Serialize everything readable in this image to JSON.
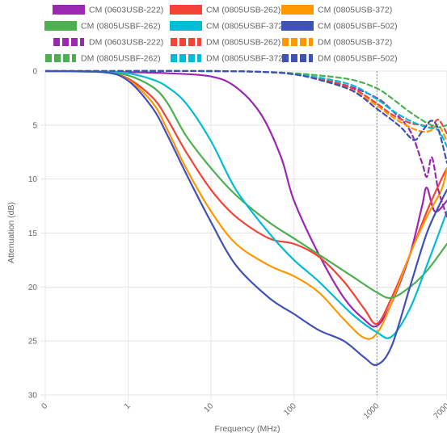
{
  "chart_data": {
    "type": "line",
    "xlabel": "Frequency (MHz)",
    "ylabel": "Attenuation (dB)",
    "x_scale": "log",
    "xlim": [
      0.1,
      7000
    ],
    "ylim": [
      0,
      30
    ],
    "y_reversed": true,
    "x_ticks": [
      "0",
      "1",
      "10",
      "100",
      "1000",
      "7000"
    ],
    "y_ticks": [
      "0",
      "5",
      "10",
      "15",
      "20",
      "25",
      "30"
    ],
    "grid": true,
    "legend_position": "top",
    "marker_line": {
      "x": 1000,
      "style": "dotted",
      "color": "#888888"
    },
    "series": [
      {
        "name": "CM (0603USB-222)",
        "color": "#9c27b0",
        "dash": false,
        "points": [
          [
            0.1,
            0
          ],
          [
            1,
            0.1
          ],
          [
            3,
            0.2
          ],
          [
            10,
            0.5
          ],
          [
            20,
            1.5
          ],
          [
            40,
            4
          ],
          [
            70,
            8
          ],
          [
            100,
            12
          ],
          [
            200,
            17
          ],
          [
            400,
            21
          ],
          [
            700,
            23
          ],
          [
            1000,
            23.6
          ],
          [
            1500,
            21.5
          ],
          [
            2500,
            17
          ],
          [
            3500,
            12.5
          ],
          [
            4000,
            10.8
          ],
          [
            5000,
            13
          ],
          [
            7000,
            12
          ]
        ]
      },
      {
        "name": "CM (0805USB-262)",
        "color": "#f44336",
        "dash": false,
        "points": [
          [
            0.1,
            0
          ],
          [
            0.5,
            0.1
          ],
          [
            1,
            0.7
          ],
          [
            2,
            2.5
          ],
          [
            3,
            4.5
          ],
          [
            5,
            7.5
          ],
          [
            10,
            11
          ],
          [
            20,
            13.5
          ],
          [
            50,
            15.5
          ],
          [
            100,
            16
          ],
          [
            200,
            17.2
          ],
          [
            400,
            19.5
          ],
          [
            700,
            22
          ],
          [
            1000,
            23.4
          ],
          [
            1500,
            21
          ],
          [
            2500,
            17
          ],
          [
            4000,
            13
          ],
          [
            6000,
            10
          ],
          [
            7000,
            9
          ]
        ]
      },
      {
        "name": "CM (0805USB-372)",
        "color": "#ff9800",
        "dash": false,
        "points": [
          [
            0.1,
            0
          ],
          [
            0.5,
            0.1
          ],
          [
            1,
            0.8
          ],
          [
            2,
            3
          ],
          [
            3,
            5.5
          ],
          [
            5,
            9
          ],
          [
            10,
            13
          ],
          [
            20,
            16
          ],
          [
            50,
            18
          ],
          [
            100,
            19
          ],
          [
            200,
            20.5
          ],
          [
            400,
            23
          ],
          [
            700,
            24.7
          ],
          [
            1000,
            24.3
          ],
          [
            1500,
            21.5
          ],
          [
            2500,
            17
          ],
          [
            4000,
            13.5
          ],
          [
            6000,
            11
          ],
          [
            7000,
            9
          ]
        ]
      },
      {
        "name": "CM (0805USBF-262)",
        "color": "#4caf50",
        "dash": false,
        "points": [
          [
            0.1,
            0
          ],
          [
            0.5,
            0.1
          ],
          [
            1,
            0.4
          ],
          [
            2,
            1.5
          ],
          [
            3,
            3
          ],
          [
            5,
            6
          ],
          [
            10,
            9
          ],
          [
            20,
            11.5
          ],
          [
            50,
            14
          ],
          [
            100,
            15.5
          ],
          [
            200,
            17
          ],
          [
            500,
            19
          ],
          [
            1000,
            20.5
          ],
          [
            1500,
            21
          ],
          [
            2500,
            20
          ],
          [
            4000,
            18.5
          ],
          [
            7000,
            16
          ]
        ]
      },
      {
        "name": "CM (0805USBF-372)",
        "color": "#00bcd4",
        "dash": false,
        "points": [
          [
            0.1,
            0
          ],
          [
            0.5,
            0.05
          ],
          [
            1,
            0.2
          ],
          [
            2,
            0.8
          ],
          [
            3,
            1.5
          ],
          [
            5,
            3
          ],
          [
            10,
            6.5
          ],
          [
            20,
            11
          ],
          [
            50,
            15
          ],
          [
            100,
            17.5
          ],
          [
            200,
            19.5
          ],
          [
            500,
            22.5
          ],
          [
            1000,
            24.2
          ],
          [
            1500,
            24.6
          ],
          [
            2500,
            22
          ],
          [
            4000,
            18
          ],
          [
            7000,
            13
          ]
        ]
      },
      {
        "name": "CM (0805USBF-502)",
        "color": "#3f51b5",
        "dash": false,
        "points": [
          [
            0.1,
            0
          ],
          [
            0.5,
            0.1
          ],
          [
            1,
            0.9
          ],
          [
            2,
            3.5
          ],
          [
            3,
            6
          ],
          [
            5,
            9.5
          ],
          [
            10,
            14
          ],
          [
            20,
            18
          ],
          [
            50,
            21
          ],
          [
            100,
            22.5
          ],
          [
            200,
            24
          ],
          [
            400,
            25
          ],
          [
            700,
            26.5
          ],
          [
            1000,
            27.2
          ],
          [
            1500,
            25.5
          ],
          [
            2500,
            20
          ],
          [
            4000,
            15
          ],
          [
            6000,
            12
          ],
          [
            7000,
            11
          ]
        ]
      },
      {
        "name": "DM (0603USB-222)",
        "color": "#9c27b0",
        "dash": true,
        "points": [
          [
            0.1,
            0
          ],
          [
            10,
            0
          ],
          [
            50,
            0.1
          ],
          [
            100,
            0.3
          ],
          [
            200,
            0.7
          ],
          [
            500,
            1.5
          ],
          [
            1000,
            2.5
          ],
          [
            1500,
            3.6
          ],
          [
            2500,
            5.5
          ],
          [
            3500,
            8.5
          ],
          [
            4000,
            9.8
          ],
          [
            4600,
            8
          ],
          [
            5500,
            11
          ],
          [
            7000,
            13.5
          ]
        ]
      },
      {
        "name": "DM (0805USB-262)",
        "color": "#f44336",
        "dash": true,
        "points": [
          [
            0.1,
            0
          ],
          [
            10,
            0
          ],
          [
            50,
            0.1
          ],
          [
            100,
            0.3
          ],
          [
            200,
            0.7
          ],
          [
            500,
            1.6
          ],
          [
            1000,
            3
          ],
          [
            1500,
            4
          ],
          [
            2500,
            4.8
          ],
          [
            3500,
            5
          ],
          [
            4500,
            5.2
          ],
          [
            5500,
            4.5
          ],
          [
            7000,
            5.8
          ]
        ]
      },
      {
        "name": "DM (0805USB-372)",
        "color": "#ff9800",
        "dash": true,
        "points": [
          [
            0.1,
            0
          ],
          [
            10,
            0
          ],
          [
            50,
            0.1
          ],
          [
            100,
            0.3
          ],
          [
            200,
            0.8
          ],
          [
            500,
            1.8
          ],
          [
            1000,
            3.2
          ],
          [
            1500,
            4.2
          ],
          [
            2500,
            5.2
          ],
          [
            3500,
            5.6
          ],
          [
            4500,
            5.5
          ],
          [
            5500,
            5
          ],
          [
            7000,
            6.5
          ]
        ]
      },
      {
        "name": "DM (0805USBF-262)",
        "color": "#4caf50",
        "dash": true,
        "points": [
          [
            0.1,
            0
          ],
          [
            10,
            0
          ],
          [
            50,
            0.1
          ],
          [
            100,
            0.2
          ],
          [
            200,
            0.4
          ],
          [
            500,
            0.8
          ],
          [
            1000,
            1.6
          ],
          [
            1500,
            2.5
          ],
          [
            2500,
            3.8
          ],
          [
            4000,
            4.8
          ],
          [
            5500,
            5.2
          ],
          [
            7000,
            5
          ]
        ]
      },
      {
        "name": "DM (0805USBF-372)",
        "color": "#00bcd4",
        "dash": true,
        "points": [
          [
            0.1,
            0
          ],
          [
            10,
            0
          ],
          [
            50,
            0.1
          ],
          [
            100,
            0.3
          ],
          [
            200,
            0.6
          ],
          [
            500,
            1.3
          ],
          [
            1000,
            2.6
          ],
          [
            1500,
            3.6
          ],
          [
            2500,
            4.6
          ],
          [
            4000,
            5.2
          ],
          [
            5500,
            5.5
          ],
          [
            7000,
            7
          ]
        ]
      },
      {
        "name": "DM (0805USBF-502)",
        "color": "#3f51b5",
        "dash": true,
        "points": [
          [
            0.1,
            0
          ],
          [
            10,
            0
          ],
          [
            50,
            0.1
          ],
          [
            100,
            0.3
          ],
          [
            200,
            0.8
          ],
          [
            500,
            1.8
          ],
          [
            1000,
            3.5
          ],
          [
            1500,
            4.5
          ],
          [
            2000,
            5.3
          ],
          [
            2800,
            6.4
          ],
          [
            3500,
            5.6
          ],
          [
            4500,
            4.6
          ],
          [
            5500,
            5.4
          ],
          [
            7000,
            8.5
          ]
        ]
      }
    ]
  }
}
